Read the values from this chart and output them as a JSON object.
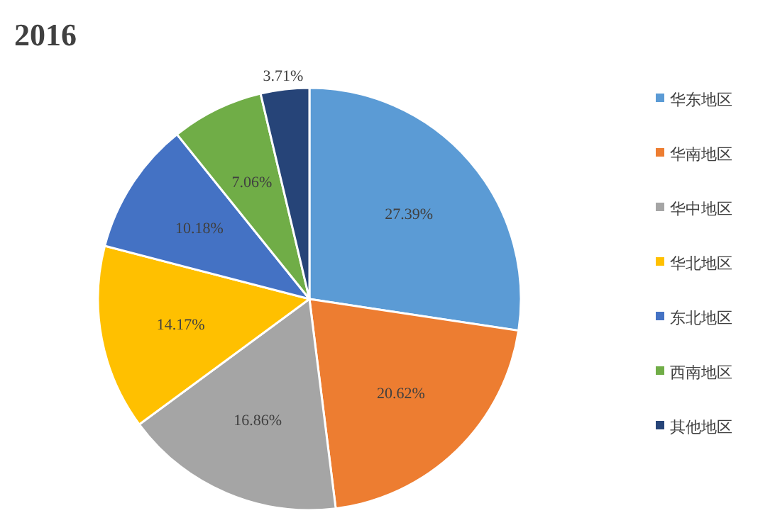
{
  "chart_data": {
    "type": "pie",
    "title": "2016",
    "categories": [
      "华东地区",
      "华南地区",
      "华中地区",
      "华北地区",
      "东北地区",
      "西南地区",
      "其他地区"
    ],
    "values": [
      27.39,
      20.62,
      16.86,
      14.17,
      10.18,
      7.06,
      3.71
    ],
    "colors": [
      "#5b9bd5",
      "#ed7d31",
      "#a5a5a5",
      "#ffc000",
      "#4472c4",
      "#70ad47",
      "#264478"
    ],
    "value_labels": [
      "27.39%",
      "20.62%",
      "16.86%",
      "14.17%",
      "10.18%",
      "7.06%",
      "3.71%"
    ],
    "legend": "right"
  }
}
